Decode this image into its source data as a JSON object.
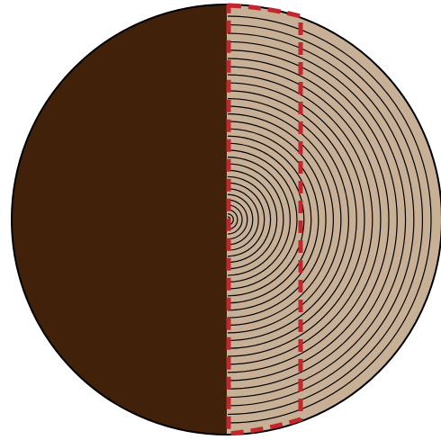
{
  "diagram": {
    "colors": {
      "left_half": "#42210b",
      "right_half": "#c8b096",
      "rings": "#000000",
      "dashed_region": "#c1272d",
      "background": "#ffffff"
    },
    "ring_count": 30
  }
}
